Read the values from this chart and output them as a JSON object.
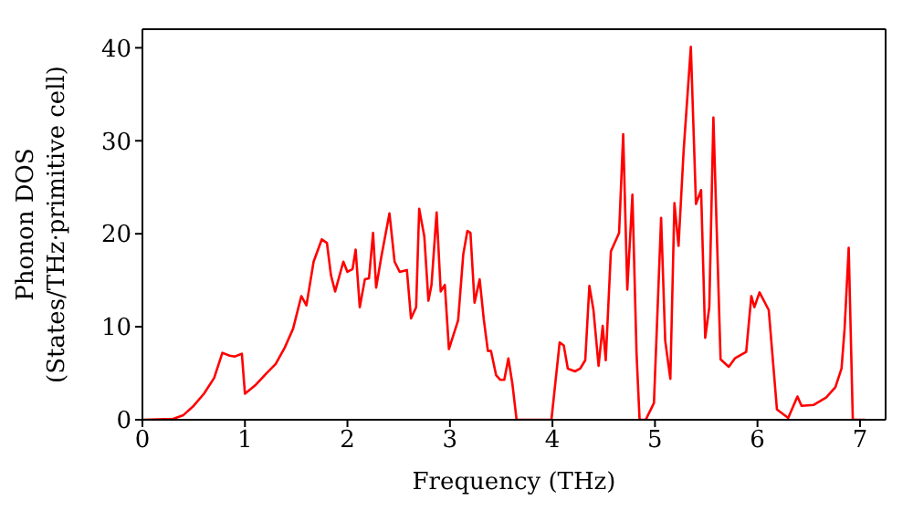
{
  "chart_data": {
    "type": "line",
    "xlabel": "Frequency (THz)",
    "ylabel": "Phonon DOS\n(States/THz·primitive cell)",
    "xlim": [
      0,
      7.25
    ],
    "xticks": [
      0,
      1,
      2,
      3,
      4,
      5,
      6,
      7
    ],
    "ylim": [
      0,
      42
    ],
    "yticks": [
      0,
      10,
      20,
      30,
      40
    ],
    "marker": "none",
    "line_style": "solid",
    "x": [
      0,
      0.3,
      0.4,
      0.5,
      0.6,
      0.7,
      0.78,
      0.85,
      0.9,
      0.97,
      1.0,
      1.1,
      1.21,
      1.3,
      1.39,
      1.47,
      1.55,
      1.6,
      1.67,
      1.75,
      1.8,
      1.84,
      1.88,
      1.96,
      2.0,
      2.05,
      2.08,
      2.12,
      2.17,
      2.21,
      2.25,
      2.28,
      2.33,
      2.41,
      2.46,
      2.51,
      2.58,
      2.62,
      2.67,
      2.7,
      2.75,
      2.79,
      2.82,
      2.87,
      2.91,
      2.95,
      2.99,
      3.08,
      3.13,
      3.17,
      3.2,
      3.24,
      3.29,
      3.33,
      3.37,
      3.4,
      3.45,
      3.49,
      3.53,
      3.57,
      3.61,
      3.65,
      3.99,
      4.07,
      4.11,
      4.15,
      4.22,
      4.27,
      4.32,
      4.36,
      4.4,
      4.45,
      4.49,
      4.52,
      4.57,
      4.65,
      4.69,
      4.73,
      4.78,
      4.82,
      4.85,
      4.91,
      4.99,
      5.06,
      5.1,
      5.15,
      5.19,
      5.23,
      5.28,
      5.35,
      5.4,
      5.45,
      5.49,
      5.53,
      5.57,
      5.64,
      5.72,
      5.78,
      5.89,
      5.94,
      5.97,
      6.02,
      6.11,
      6.19,
      6.3,
      6.39,
      6.43,
      6.55,
      6.67,
      6.76,
      6.82,
      6.85,
      6.89,
      6.93,
      7.05
    ],
    "series": [
      {
        "color": "#ff0000",
        "values": [
          0,
          0.1,
          0.5,
          1.5,
          2.8,
          4.5,
          7.2,
          6.9,
          6.8,
          7.1,
          2.8,
          3.7,
          5.0,
          6.0,
          7.8,
          9.8,
          13.3,
          12.3,
          17,
          19.4,
          19.0,
          15.5,
          13.8,
          17,
          15.9,
          16.2,
          18.3,
          12.1,
          15.1,
          15.2,
          20.1,
          14.2,
          17.5,
          22.2,
          17,
          15.9,
          16.1,
          10.9,
          12.1,
          22.7,
          19.7,
          12.8,
          14.5,
          22.3,
          13.8,
          14.5,
          7.6,
          10.7,
          17.8,
          20.3,
          20.1,
          12.6,
          15.1,
          10.8,
          7.4,
          7.4,
          4.8,
          4.3,
          4.3,
          6.6,
          3.8,
          0,
          0,
          8.3,
          8.0,
          5.5,
          5.2,
          5.5,
          6.4,
          14.4,
          11.8,
          5.8,
          10.1,
          6.4,
          18.1,
          20.1,
          30.7,
          14.0,
          24.2,
          7.2,
          0,
          0,
          1.8,
          21.7,
          8.5,
          4.4,
          23.3,
          18.7,
          29,
          40.1,
          23.2,
          24.7,
          8.8,
          12.1,
          32.5,
          6.5,
          5.7,
          6.6,
          7.3,
          13.3,
          12.1,
          13.7,
          11.8,
          1.1,
          0.2,
          2.5,
          1.5,
          1.6,
          2.4,
          3.5,
          5.5,
          9.8,
          18.5,
          0,
          0
        ]
      }
    ]
  }
}
